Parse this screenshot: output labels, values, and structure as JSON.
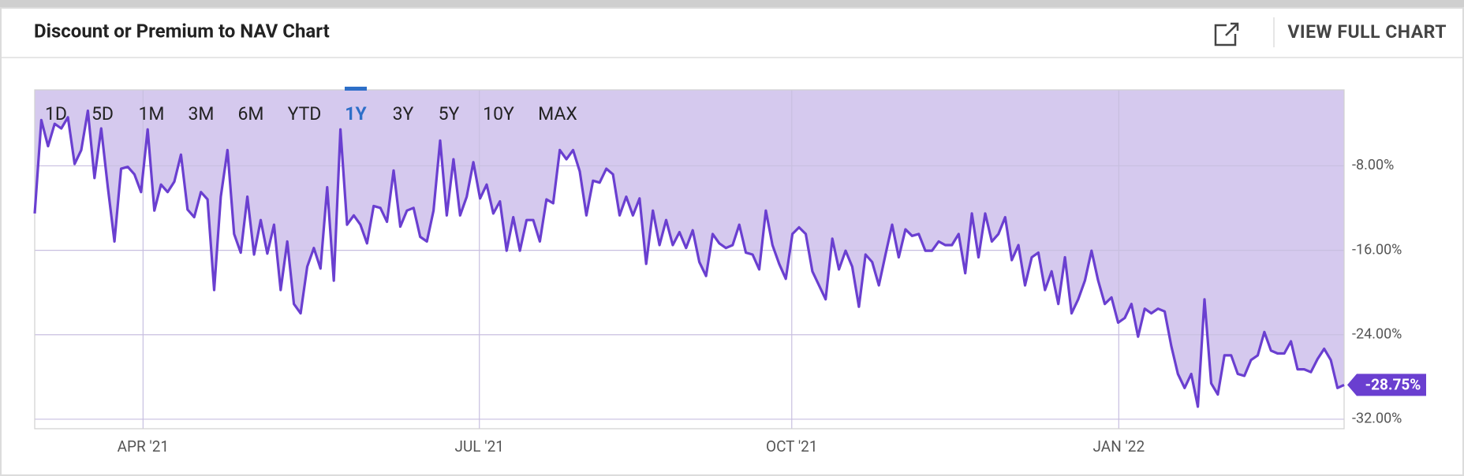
{
  "header": {
    "title": "Discount or Premium to NAV Chart",
    "action": "VIEW FULL CHART"
  },
  "ranges": [
    "1D",
    "5D",
    "1M",
    "3M",
    "6M",
    "YTD",
    "1Y",
    "3Y",
    "5Y",
    "10Y",
    "MAX"
  ],
  "selected_range": 6,
  "chart_data": {
    "type": "line",
    "color": "#6a3fd0",
    "area_color": "#d5c9ee",
    "values": [
      -12.51,
      -3.67,
      -6.14,
      -4.02,
      -4.46,
      -3.4,
      -7.82,
      -6.5,
      -2.78,
      -9.15,
      -4.46,
      -10.03,
      -15.16,
      -8.27,
      -8.09,
      -8.8,
      -10.48,
      -4.55,
      -12.24,
      -9.77,
      -10.48,
      -9.5,
      -6.94,
      -12.15,
      -12.86,
      -10.48,
      -11.18,
      -19.76,
      -10.92,
      -6.5,
      -14.45,
      -16.22,
      -10.92,
      -16.4,
      -13.13,
      -16.31,
      -13.57,
      -19.76,
      -15.16,
      -21.08,
      -21.97,
      -17.55,
      -15.78,
      -17.72,
      -10.03,
      -18.87,
      -4.55,
      -13.57,
      -12.69,
      -13.57,
      -15.34,
      -11.8,
      -11.98,
      -13.3,
      -8.44,
      -13.75,
      -12.24,
      -11.98,
      -14.72,
      -15.16,
      -12.24,
      -5.61,
      -12.69,
      -7.38,
      -12.69,
      -10.92,
      -7.65,
      -11.09,
      -9.77,
      -12.51,
      -11.36,
      -16.04,
      -12.86,
      -16.04,
      -13.13,
      -13.13,
      -15.16,
      -11.18,
      -11.54,
      -6.5,
      -7.38,
      -6.5,
      -8.53,
      -12.69,
      -9.41,
      -9.59,
      -8.27,
      -8.8,
      -12.69,
      -10.92,
      -12.69,
      -11.09,
      -17.28,
      -12.24,
      -15.51,
      -13.13,
      -15.51,
      -14.28,
      -15.78,
      -14.1,
      -17.11,
      -18.43,
      -14.45,
      -15.34,
      -15.78,
      -15.51,
      -13.57,
      -16.22,
      -16.4,
      -17.81,
      -12.24,
      -15.51,
      -17.28,
      -18.7,
      -14.45,
      -13.83,
      -14.45,
      -17.99,
      -19.32,
      -20.64,
      -14.9,
      -17.81,
      -16.04,
      -17.55,
      -21.35,
      -16.4,
      -17.11,
      -19.32,
      -16.4,
      -13.57,
      -16.66,
      -14.01,
      -14.63,
      -14.45,
      -16.04,
      -16.04,
      -15.16,
      -15.51,
      -15.51,
      -14.45,
      -18.17,
      -12.51,
      -16.66,
      -12.51,
      -15.16,
      -14.45,
      -12.86,
      -16.93,
      -15.51,
      -19.32,
      -16.66,
      -16.22,
      -19.76,
      -17.99,
      -21.08,
      -16.66,
      -21.97,
      -20.64,
      -18.87,
      -16.04,
      -18.87,
      -21.08,
      -20.46,
      -22.85,
      -22.41,
      -21.08,
      -24.18,
      -21.53,
      -21.97,
      -21.53,
      -21.79,
      -25.06,
      -27.71,
      -29.04,
      -27.71,
      -30.81,
      -20.64,
      -28.6,
      -29.66,
      -25.95,
      -25.95,
      -27.71,
      -27.89,
      -26.39,
      -25.95,
      -23.74,
      -25.5,
      -25.77,
      -25.77,
      -24.62,
      -27.27,
      -27.27,
      -27.54,
      -26.3,
      -25.33,
      -26.39,
      -29.04,
      -28.75
    ],
    "last_value_label": "-28.75%",
    "xlim": [
      0,
      197
    ],
    "xticks": [
      {
        "value": 16.3,
        "label": "APR '21"
      },
      {
        "value": 66.9,
        "label": "JUL '21"
      },
      {
        "value": 113.9,
        "label": "OCT '21"
      },
      {
        "value": 163.1,
        "label": "JAN '22"
      }
    ],
    "ylim": [
      -32.9,
      -0.8
    ],
    "yticks": [
      {
        "value": -8,
        "label": "-8.00%"
      },
      {
        "value": -16,
        "label": "-16.00%"
      },
      {
        "value": -24,
        "label": "-24.00%"
      },
      {
        "value": -32,
        "label": "-32.00%"
      }
    ],
    "grid": true
  }
}
